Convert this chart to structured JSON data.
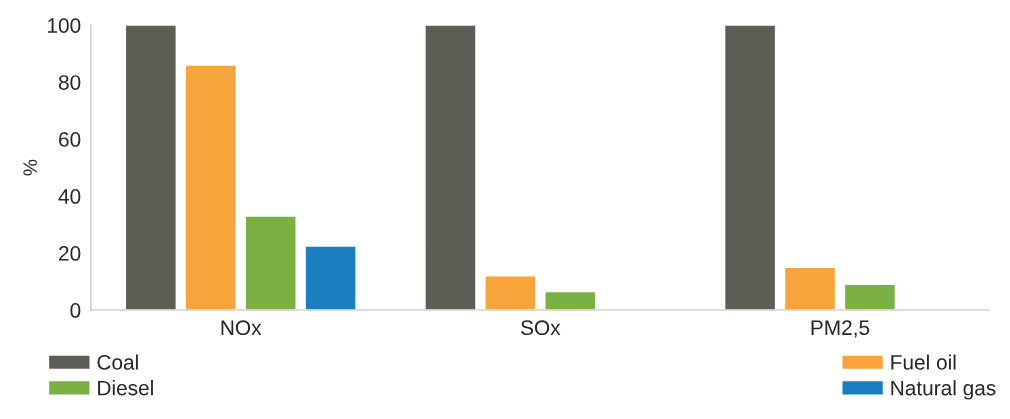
{
  "chart_data": {
    "type": "bar",
    "ylabel": "%",
    "categories": [
      "NOx",
      "SOx",
      "PM2,5"
    ],
    "series": [
      {
        "name": "Coal",
        "color": "#5e5d55",
        "values": [
          100,
          100,
          100
        ]
      },
      {
        "name": "Fuel oil",
        "color": "#f7a43a",
        "values": [
          86,
          12,
          15
        ]
      },
      {
        "name": "Diesel",
        "color": "#7bb043",
        "values": [
          33,
          6.5,
          9
        ]
      },
      {
        "name": "Natural gas",
        "color": "#1b7fbf",
        "values": [
          22.5,
          null,
          null
        ]
      }
    ],
    "ylim": [
      0,
      100
    ],
    "yticks": [
      0,
      20,
      40,
      60,
      80,
      100
    ],
    "grid": false,
    "legend": "bottom"
  }
}
